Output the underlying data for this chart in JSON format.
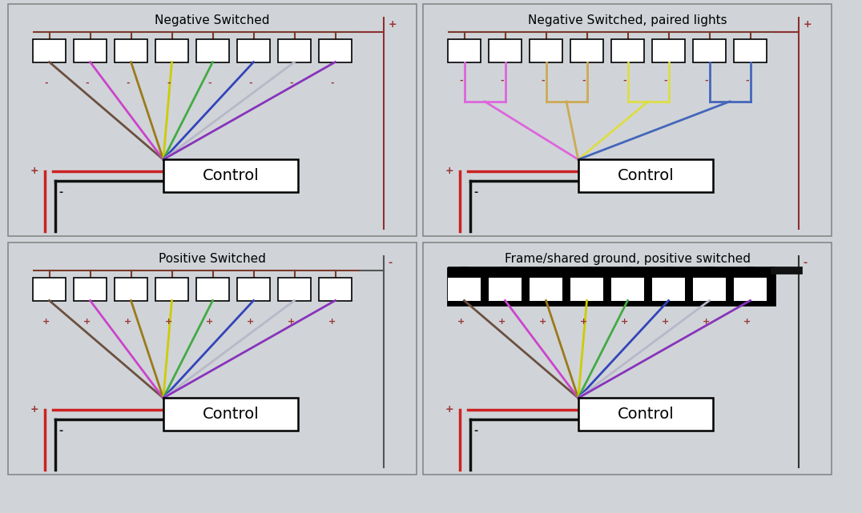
{
  "bg_color": "#d0d4d8",
  "title_fontsize": 11,
  "panels": [
    {
      "title": "Negative Switched",
      "top_sign": "+",
      "right_rail_color": "#8B3030",
      "bus_color": "#7a3a2a",
      "bus_thick": false,
      "wire_colors": [
        "#6b5040",
        "#cc44cc",
        "#9b7a1a",
        "#cccc00",
        "#44aa44",
        "#3344bb",
        "#b8b8c8",
        "#8833bb"
      ],
      "wire_sign": "-",
      "sign_color": "#993333",
      "paired": false
    },
    {
      "title": "Negative Switched, paired lights",
      "top_sign": "+",
      "right_rail_color": "#8B3030",
      "bus_color": "#7a3a2a",
      "bus_thick": false,
      "wire_colors": [
        "#dd66dd",
        "#dd66dd",
        "#ccaa55",
        "#ccaa55",
        "#dddd44",
        "#dddd44",
        "#4466bb",
        "#4466bb"
      ],
      "wire_sign": "-",
      "sign_color": "#993333",
      "paired": true
    },
    {
      "title": "Positive Switched",
      "top_sign": "-",
      "right_rail_color": "#555555",
      "bus_color": "#7a3a2a",
      "bus_thick": false,
      "wire_colors": [
        "#6b5040",
        "#cc44cc",
        "#9b7a1a",
        "#cccc00",
        "#44aa44",
        "#3344bb",
        "#b8b8c8",
        "#8833bb"
      ],
      "wire_sign": "+",
      "sign_color": "#993333",
      "paired": false
    },
    {
      "title": "Frame/shared ground, positive switched",
      "top_sign": "-",
      "right_rail_color": "#333333",
      "bus_color": "#111111",
      "bus_thick": true,
      "wire_colors": [
        "#6b5040",
        "#cc44cc",
        "#9b7a1a",
        "#cccc00",
        "#44aa44",
        "#3344bb",
        "#b8b8c8",
        "#8833bb"
      ],
      "wire_sign": "+",
      "sign_color": "#993333",
      "paired": false
    }
  ]
}
